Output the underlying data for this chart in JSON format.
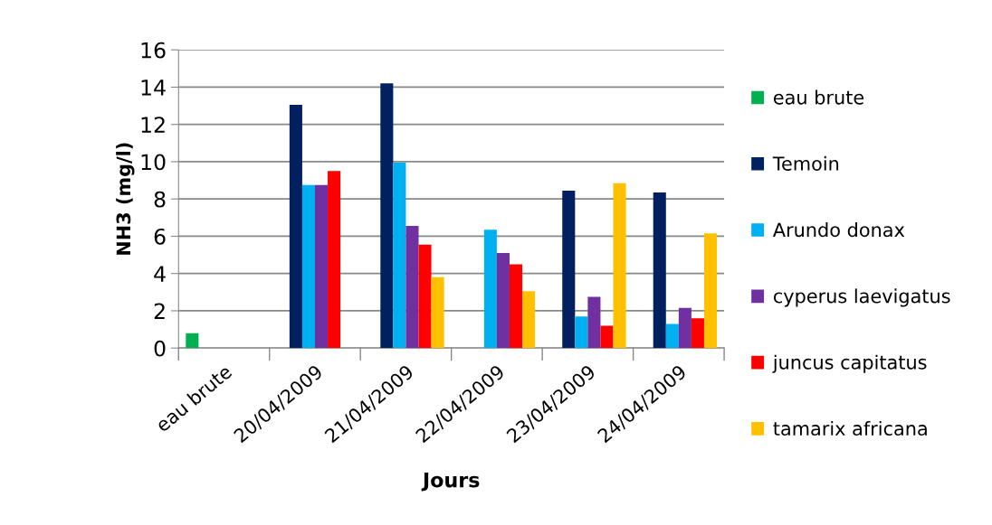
{
  "chart_data": {
    "type": "bar",
    "xlabel": "Jours",
    "ylabel": "NH3 (mg/l)",
    "categories": [
      "eau brute",
      "20/04/2009",
      "21/04/2009",
      "22/04/2009",
      "23/04/2009",
      "24/04/2009"
    ],
    "series": [
      {
        "name": "eau brute",
        "color": "#00b050",
        "values": [
          0.8,
          null,
          null,
          null,
          null,
          null
        ]
      },
      {
        "name": "Temoin",
        "color": "#002060",
        "values": [
          null,
          13.05,
          14.2,
          null,
          8.45,
          8.35
        ]
      },
      {
        "name": "Arundo donax",
        "color": "#00b0f0",
        "values": [
          null,
          8.75,
          9.95,
          6.35,
          1.7,
          1.3
        ]
      },
      {
        "name": "cyperus laevigatus",
        "color": "#7030a0",
        "values": [
          null,
          8.75,
          6.55,
          5.1,
          2.75,
          2.15
        ]
      },
      {
        "name": "juncus capitatus",
        "color": "#ff0000",
        "values": [
          null,
          9.5,
          5.55,
          4.5,
          1.2,
          1.6
        ]
      },
      {
        "name": "tamarix africana",
        "color": "#ffc000",
        "values": [
          null,
          null,
          3.8,
          3.05,
          8.85,
          6.15
        ]
      }
    ],
    "ylim": [
      0,
      16
    ],
    "yticks": [
      0,
      2,
      4,
      6,
      8,
      10,
      12,
      14,
      16
    ],
    "grid": "y",
    "legend": "right"
  }
}
